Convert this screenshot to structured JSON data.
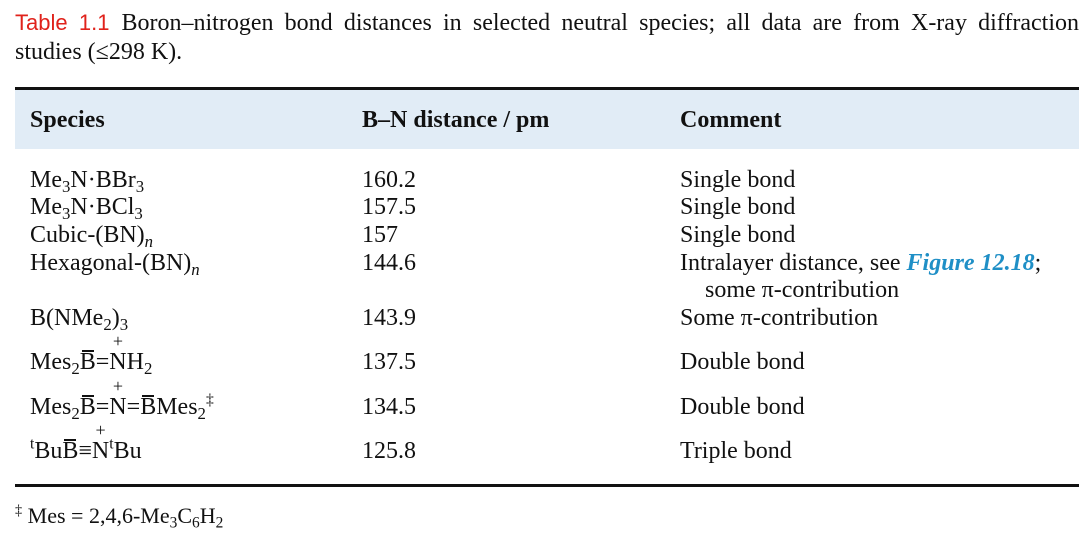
{
  "caption": {
    "label": "Table 1.1",
    "text": "Boron–nitrogen bond distances in selected neutral species; all data are from X-ray diffraction studies (≤298 K)."
  },
  "columns": [
    "Species",
    "B–N distance / pm",
    "Comment"
  ],
  "rows": [
    {
      "species": "Me3N·BBr3",
      "distance": "160.2",
      "comment": "Single bond"
    },
    {
      "species": "Me3N·BCl3",
      "distance": "157.5",
      "comment": "Single bond"
    },
    {
      "species": "Cubic-(BN)n",
      "distance": "157",
      "comment": "Single bond"
    },
    {
      "species": "Hexagonal-(BN)n",
      "distance": "144.6",
      "comment_pre": "Intralayer distance, see ",
      "comment_link": "Figure 12.18",
      "comment_post": ";",
      "comment_line2": "some π-contribution"
    },
    {
      "species": "B(NMe2)3",
      "distance": "143.9",
      "comment": "Some π-contribution"
    },
    {
      "species": "Mes2B=NH2",
      "distance": "137.5",
      "comment": "Double bond"
    },
    {
      "species": "Mes2B=N=BMes2‡",
      "distance": "134.5",
      "comment": "Double bond"
    },
    {
      "species": "tBuB≡NtBu",
      "distance": "125.8",
      "comment": "Triple bond"
    }
  ],
  "footnote": "‡ Mes = 2,4,6-Me3C6H2"
}
